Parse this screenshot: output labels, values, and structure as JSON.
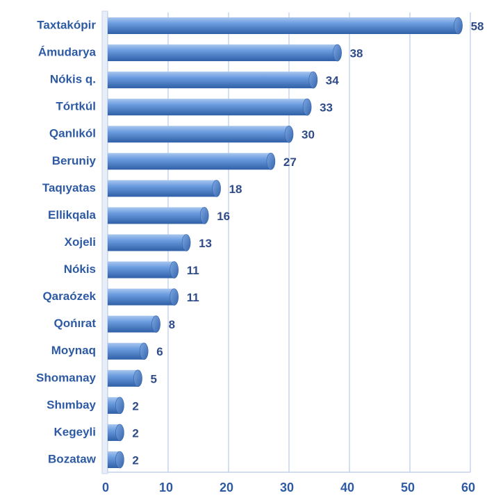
{
  "chart_data": {
    "type": "bar",
    "orientation": "horizontal",
    "categories": [
      "Taxtakópir",
      "Ámudarya",
      "Nókis q.",
      "Tórtkúl",
      "Qanlıkól",
      "Beruniy",
      "Taqıyatas",
      "Ellikqala",
      "Xojeli",
      "Nókis",
      "Qaraózek",
      "Qońırat",
      "Moynaq",
      "Shomanay",
      "Shımbay",
      "Kegeyli",
      "Bozataw"
    ],
    "values": [
      58,
      38,
      34,
      33,
      30,
      27,
      18,
      16,
      13,
      11,
      11,
      8,
      6,
      5,
      2,
      2,
      2
    ],
    "color": "#5b8fd6",
    "xlim": [
      0,
      60
    ],
    "xticks": [
      0,
      10,
      20,
      30,
      40,
      50,
      60
    ],
    "grid": true
  }
}
